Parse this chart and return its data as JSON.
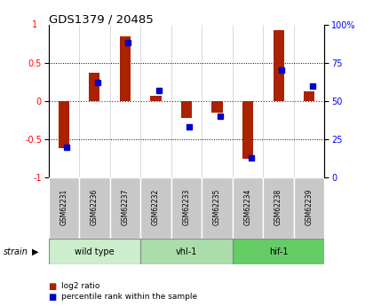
{
  "title": "GDS1379 / 20485",
  "samples": [
    "GSM62231",
    "GSM62236",
    "GSM62237",
    "GSM62232",
    "GSM62233",
    "GSM62235",
    "GSM62234",
    "GSM62238",
    "GSM62239"
  ],
  "log2_ratio": [
    -0.62,
    0.37,
    0.85,
    0.07,
    -0.22,
    -0.15,
    -0.75,
    0.93,
    0.13
  ],
  "percentile_rank": [
    20,
    62,
    88,
    57,
    33,
    40,
    13,
    70,
    60
  ],
  "groups": [
    {
      "label": "wild type",
      "start": 0,
      "end": 3,
      "color": "#cceecc"
    },
    {
      "label": "vhl-1",
      "start": 3,
      "end": 6,
      "color": "#aaddaa"
    },
    {
      "label": "hif-1",
      "start": 6,
      "end": 9,
      "color": "#66cc66"
    }
  ],
  "ylim_left": [
    -1,
    1
  ],
  "yticks_left": [
    -1,
    -0.5,
    0,
    0.5
  ],
  "yticks_right": [
    0,
    25,
    50,
    75,
    100
  ],
  "bar_color": "#aa2200",
  "dot_color": "#0000cc",
  "zero_line_color": "#cc0000",
  "grid_color": "#000000",
  "legend_log2": "log2 ratio",
  "legend_pct": "percentile rank within the sample",
  "strain_label": "strain"
}
